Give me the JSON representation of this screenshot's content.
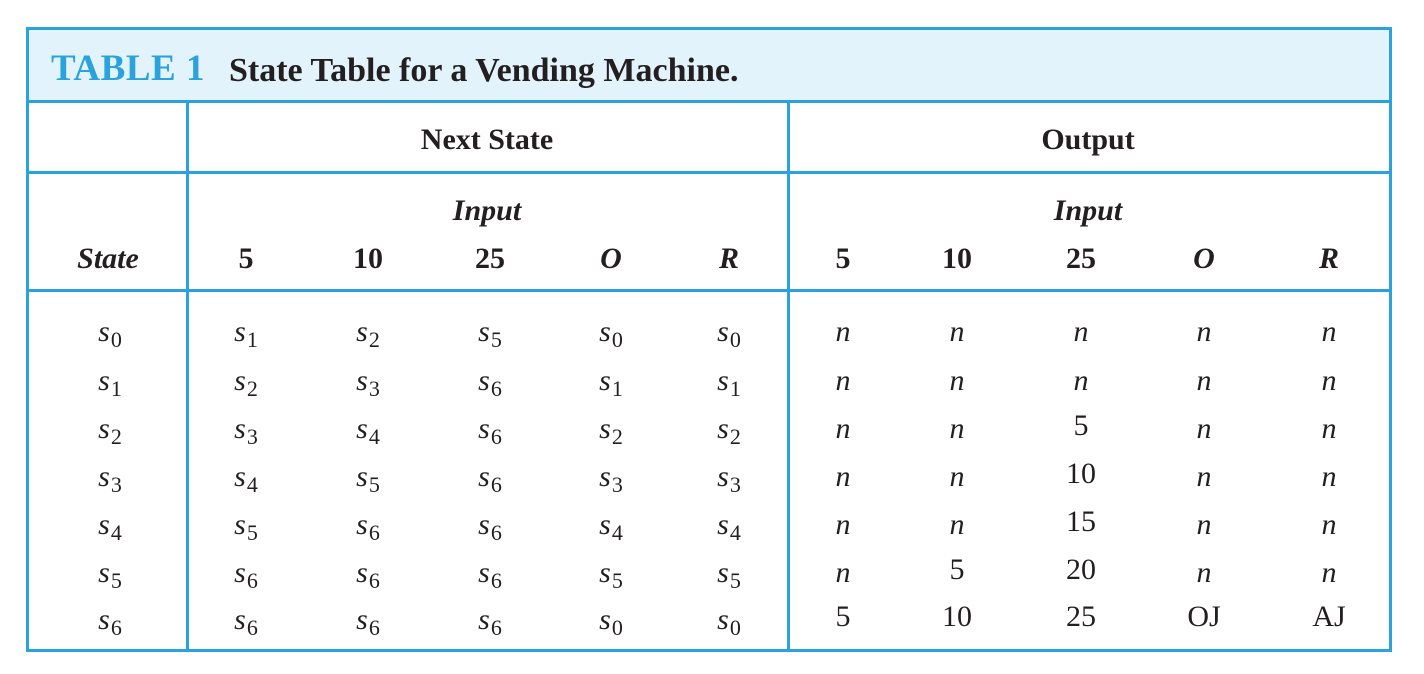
{
  "caption": {
    "label": "TABLE 1",
    "title": "State Table for a Vending Machine."
  },
  "headers": {
    "next_state": "Next State",
    "output": "Output",
    "input_next": "Input",
    "input_output": "Input",
    "state": "State",
    "next_inputs": [
      "5",
      "10",
      "25",
      "O",
      "R"
    ],
    "output_inputs": [
      "5",
      "10",
      "25",
      "O",
      "R"
    ]
  },
  "rows": [
    {
      "state": "s0",
      "next": [
        "s1",
        "s2",
        "s5",
        "s0",
        "s0"
      ],
      "output": [
        "n",
        "n",
        "n",
        "n",
        "n"
      ]
    },
    {
      "state": "s1",
      "next": [
        "s2",
        "s3",
        "s6",
        "s1",
        "s1"
      ],
      "output": [
        "n",
        "n",
        "n",
        "n",
        "n"
      ]
    },
    {
      "state": "s2",
      "next": [
        "s3",
        "s4",
        "s6",
        "s2",
        "s2"
      ],
      "output": [
        "n",
        "n",
        "5",
        "n",
        "n"
      ]
    },
    {
      "state": "s3",
      "next": [
        "s4",
        "s5",
        "s6",
        "s3",
        "s3"
      ],
      "output": [
        "n",
        "n",
        "10",
        "n",
        "n"
      ]
    },
    {
      "state": "s4",
      "next": [
        "s5",
        "s6",
        "s6",
        "s4",
        "s4"
      ],
      "output": [
        "n",
        "n",
        "15",
        "n",
        "n"
      ]
    },
    {
      "state": "s5",
      "next": [
        "s6",
        "s6",
        "s6",
        "s5",
        "s5"
      ],
      "output": [
        "n",
        "5",
        "20",
        "n",
        "n"
      ]
    },
    {
      "state": "s6",
      "next": [
        "s6",
        "s6",
        "s6",
        "s0",
        "s0"
      ],
      "output": [
        "5",
        "10",
        "25",
        "OJ",
        "AJ"
      ]
    }
  ]
}
